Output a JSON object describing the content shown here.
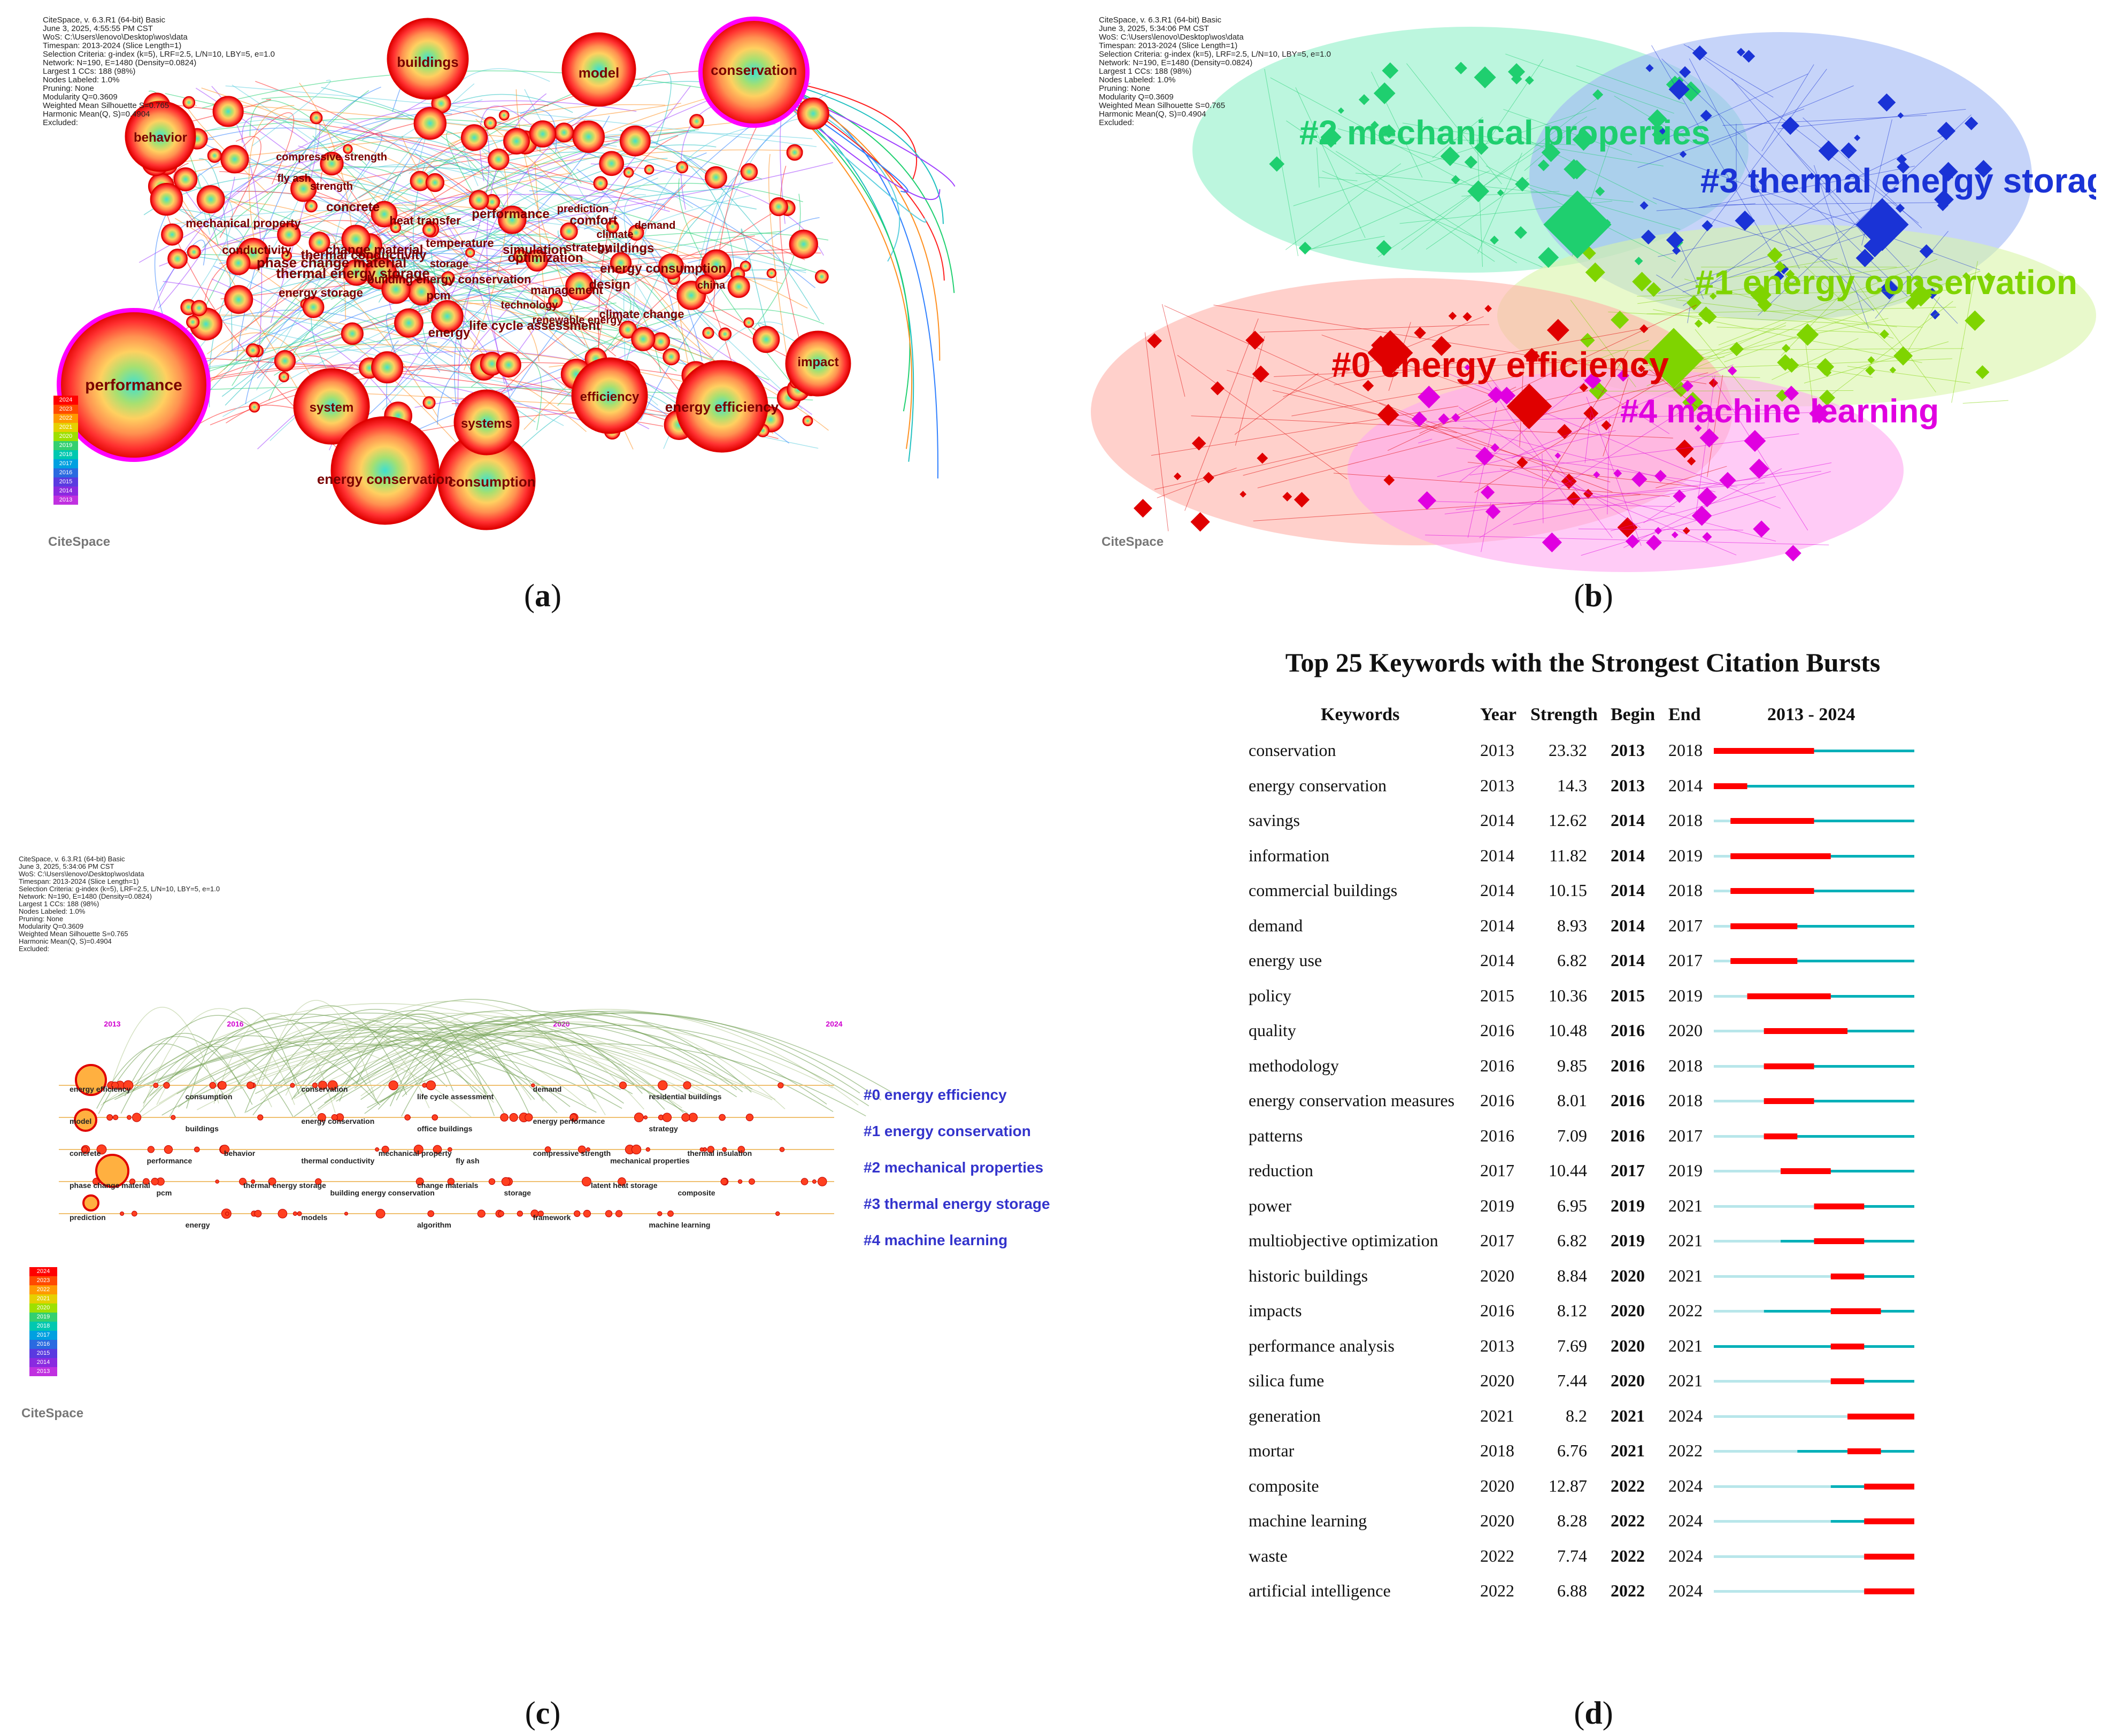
{
  "panel_a": {
    "caption": "a",
    "info_lines": [
      "CiteSpace, v. 6.3.R1 (64-bit) Basic",
      "June 3, 2025, 4:55:55 PM CST",
      "WoS: C:\\Users\\lenovo\\Desktop\\wos\\data",
      "Timespan: 2013-2024 (Slice Length=1)",
      "Selection Criteria: g-index (k=5), LRF=2.5, L/N=10, LBY=5, e=1.0",
      "Network: N=190, E=1480 (Density=0.0824)",
      "Largest 1 CCs: 188 (98%)",
      "Nodes Labeled: 1.0%",
      "Pruning: None",
      "Modularity Q=0.3609",
      "Weighted Mean Silhouette S=0.765",
      "Harmonic Mean(Q, S)=0.4904",
      "Excluded:"
    ],
    "legend_years": [
      "2024",
      "2023",
      "2022",
      "2021",
      "2020",
      "2019",
      "2018",
      "2017",
      "2016",
      "2015",
      "2014",
      "2013"
    ],
    "logo": "CiteSpace",
    "nodes": [
      "performance",
      "conservation",
      "buildings",
      "model",
      "behavior",
      "impact",
      "system",
      "energy conservation",
      "consumption",
      "efficiency",
      "energy efficiency",
      "systems",
      "compressive strength",
      "fly ash",
      "strength",
      "concrete",
      "mechanical property",
      "thermal conductivity",
      "conductivity",
      "change material",
      "phase change material",
      "thermal energy storage",
      "energy storage",
      "building energy conservation",
      "pcm",
      "heat transfer",
      "temperature",
      "storage",
      "performance",
      "prediction",
      "comfort",
      "climate",
      "demand",
      "buildings",
      "energy consumption",
      "management",
      "china",
      "design",
      "climate change",
      "renewable energy",
      "technology",
      "life cycle assessment",
      "energy",
      "simulation",
      "optimization",
      "strategy"
    ]
  },
  "panel_b": {
    "caption": "b",
    "info_lines": [
      "CiteSpace, v. 6.3.R1 (64-bit) Basic",
      "June 3, 2025, 5:34:06 PM CST",
      "WoS: C:\\Users\\lenovo\\Desktop\\wos\\data",
      "Timespan: 2013-2024 (Slice Length=1)",
      "Selection Criteria: g-index (k=5), LRF=2.5, L/N=10, LBY=5, e=1.0",
      "Network: N=190, E=1480 (Density=0.0824)",
      "Largest 1 CCs: 188 (98%)",
      "Nodes Labeled: 1.0%",
      "Pruning: None",
      "Modularity Q=0.3609",
      "Weighted Mean Silhouette S=0.765",
      "Harmonic Mean(Q, S)=0.4904",
      "Excluded:"
    ],
    "logo": "CiteSpace",
    "clusters": [
      {
        "label": "#2 mechanical properties",
        "color": "#1fcf6f"
      },
      {
        "label": "#3 thermal energy storage",
        "color": "#1a33d6"
      },
      {
        "label": "#1 energy conservation",
        "color": "#7fd400"
      },
      {
        "label": "#0 energy efficiency",
        "color": "#e00000"
      },
      {
        "label": "#4 machine learning",
        "color": "#e000e0"
      }
    ]
  },
  "panel_c": {
    "caption": "c",
    "info_lines": [
      "CiteSpace, v. 6.3.R1 (64-bit) Basic",
      "June 3, 2025, 5:34:06 PM CST",
      "WoS: C:\\Users\\lenovo\\Desktop\\wos\\data",
      "Timespan: 2013-2024 (Slice Length=1)",
      "Selection Criteria: g-index (k=5), LRF=2.5, L/N=10, LBY=5, e=1.0",
      "Network: N=190, E=1480 (Density=0.0824)",
      "Largest 1 CCs: 188 (98%)",
      "Nodes Labeled: 1.0%",
      "Pruning: None",
      "Modularity Q=0.3609",
      "Weighted Mean Silhouette S=0.765",
      "Harmonic Mean(Q, S)=0.4904",
      "Excluded:"
    ],
    "years": [
      "2013",
      "2016",
      "2020",
      "2024"
    ],
    "clusters": [
      "#0 energy efficiency",
      "#1 energy conservation",
      "#2 mechanical properties",
      "#3 thermal energy storage",
      "#4 machine learning"
    ],
    "legend_years": [
      "2024",
      "2023",
      "2022",
      "2021",
      "2020",
      "2019",
      "2018",
      "2017",
      "2016",
      "2015",
      "2014",
      "2013"
    ],
    "logo": "CiteSpace",
    "row_labels": [
      [
        "energy efficiency",
        "consumption",
        "conservation",
        "life cycle assessment",
        "demand",
        "residential buildings"
      ],
      [
        "model",
        "buildings",
        "energy conservation",
        "office buildings",
        "energy performance",
        "strategy"
      ],
      [
        "concrete",
        "performance",
        "behavior",
        "thermal conductivity",
        "mechanical property",
        "fly ash",
        "compressive strength",
        "mechanical properties",
        "thermal insulation"
      ],
      [
        "phase change material",
        "pcm",
        "thermal energy storage",
        "building energy conservation",
        "change materials",
        "storage",
        "latent heat storage",
        "composite"
      ],
      [
        "prediction",
        "energy",
        "models",
        "algorithm",
        "framework",
        "machine learning"
      ]
    ]
  },
  "panel_d": {
    "caption": "d",
    "chart_data": {
      "type": "table",
      "title": "Top 25 Keywords with the Strongest Citation Bursts",
      "headers": [
        "Keywords",
        "Year",
        "Strength",
        "Begin",
        "End",
        "2013 - 2024"
      ],
      "range": [
        2013,
        2024
      ],
      "rows": [
        {
          "keyword": "conservation",
          "year": 2013,
          "strength": "23.32",
          "begin": 2013,
          "end": 2018
        },
        {
          "keyword": "energy conservation",
          "year": 2013,
          "strength": "14.3",
          "begin": 2013,
          "end": 2014
        },
        {
          "keyword": "savings",
          "year": 2014,
          "strength": "12.62",
          "begin": 2014,
          "end": 2018
        },
        {
          "keyword": "information",
          "year": 2014,
          "strength": "11.82",
          "begin": 2014,
          "end": 2019
        },
        {
          "keyword": "commercial buildings",
          "year": 2014,
          "strength": "10.15",
          "begin": 2014,
          "end": 2018
        },
        {
          "keyword": "demand",
          "year": 2014,
          "strength": "8.93",
          "begin": 2014,
          "end": 2017
        },
        {
          "keyword": "energy use",
          "year": 2014,
          "strength": "6.82",
          "begin": 2014,
          "end": 2017
        },
        {
          "keyword": "policy",
          "year": 2015,
          "strength": "10.36",
          "begin": 2015,
          "end": 2019
        },
        {
          "keyword": "quality",
          "year": 2016,
          "strength": "10.48",
          "begin": 2016,
          "end": 2020
        },
        {
          "keyword": "methodology",
          "year": 2016,
          "strength": "9.85",
          "begin": 2016,
          "end": 2018
        },
        {
          "keyword": "energy conservation measures",
          "year": 2016,
          "strength": "8.01",
          "begin": 2016,
          "end": 2018
        },
        {
          "keyword": "patterns",
          "year": 2016,
          "strength": "7.09",
          "begin": 2016,
          "end": 2017
        },
        {
          "keyword": "reduction",
          "year": 2017,
          "strength": "10.44",
          "begin": 2017,
          "end": 2019
        },
        {
          "keyword": "power",
          "year": 2019,
          "strength": "6.95",
          "begin": 2019,
          "end": 2021
        },
        {
          "keyword": "multiobjective optimization",
          "year": 2017,
          "strength": "6.82",
          "begin": 2019,
          "end": 2021
        },
        {
          "keyword": "historic buildings",
          "year": 2020,
          "strength": "8.84",
          "begin": 2020,
          "end": 2021
        },
        {
          "keyword": "impacts",
          "year": 2016,
          "strength": "8.12",
          "begin": 2020,
          "end": 2022
        },
        {
          "keyword": "performance analysis",
          "year": 2013,
          "strength": "7.69",
          "begin": 2020,
          "end": 2021
        },
        {
          "keyword": "silica fume",
          "year": 2020,
          "strength": "7.44",
          "begin": 2020,
          "end": 2021
        },
        {
          "keyword": "generation",
          "year": 2021,
          "strength": "8.2",
          "begin": 2021,
          "end": 2024
        },
        {
          "keyword": "mortar",
          "year": 2018,
          "strength": "6.76",
          "begin": 2021,
          "end": 2022
        },
        {
          "keyword": "composite",
          "year": 2020,
          "strength": "12.87",
          "begin": 2022,
          "end": 2024
        },
        {
          "keyword": "machine learning",
          "year": 2020,
          "strength": "8.28",
          "begin": 2022,
          "end": 2024
        },
        {
          "keyword": "waste",
          "year": 2022,
          "strength": "7.74",
          "begin": 2022,
          "end": 2024
        },
        {
          "keyword": "artificial intelligence",
          "year": 2022,
          "strength": "6.88",
          "begin": 2022,
          "end": 2024
        }
      ],
      "colors": {
        "burst": "#ff0000",
        "active": "#00b0b8",
        "inactive": "#b8e6ea"
      }
    }
  }
}
